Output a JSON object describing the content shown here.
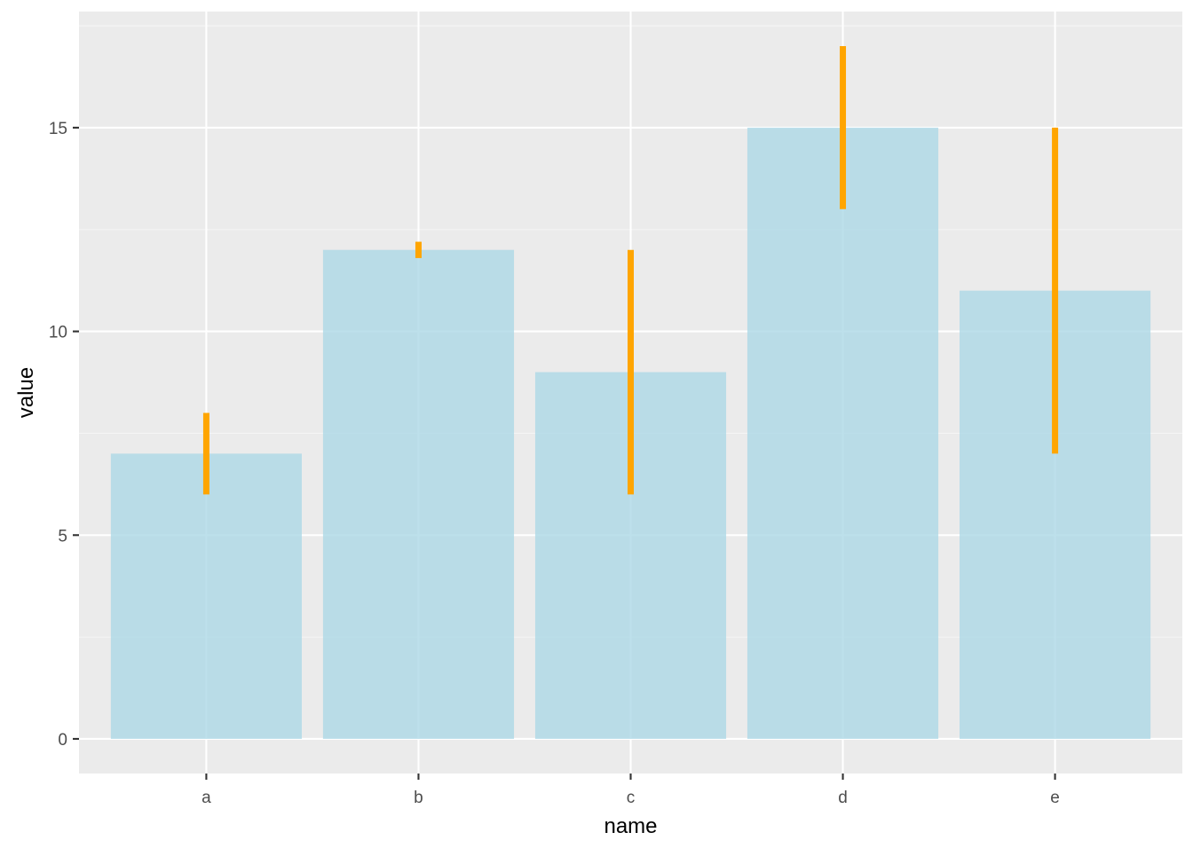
{
  "colors": {
    "panel_background": "#ebebeb",
    "grid_major": "#ffffff",
    "grid_minor": "#f5f5f5",
    "bar_fill": "#add8e6",
    "bar_opacity": 0.8,
    "errorbar": "#ffa500",
    "tick_text": "#4d4d4d",
    "axis_title": "#000000"
  },
  "chart_data": {
    "type": "bar",
    "categories": [
      "a",
      "b",
      "c",
      "d",
      "e"
    ],
    "values": [
      7,
      12,
      9,
      15,
      11
    ],
    "error_low": [
      6,
      11.8,
      6,
      13,
      7
    ],
    "error_high": [
      8,
      12.2,
      12,
      17,
      15
    ],
    "xlabel": "name",
    "ylabel": "value",
    "ylim": [
      -0.85,
      17.85
    ],
    "y_ticks": [
      0,
      5,
      10,
      15
    ],
    "y_tick_labels": [
      "0",
      "5",
      "10",
      "15"
    ],
    "grid": true,
    "legend": "none"
  }
}
